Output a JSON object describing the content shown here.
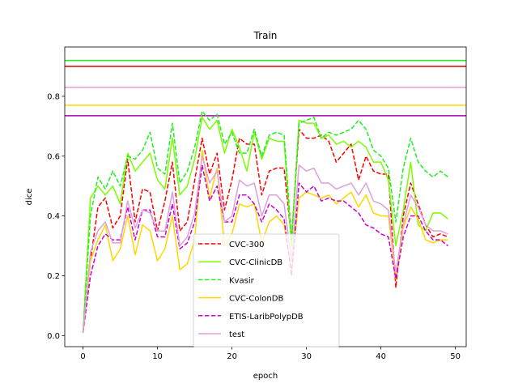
{
  "chart_data": {
    "type": "line",
    "title": "Train",
    "xlabel": "epoch",
    "ylabel": "dice",
    "xlim": [
      -2.45,
      51.45
    ],
    "ylim": [
      -0.037,
      0.965
    ],
    "xticks": [
      0,
      10,
      20,
      30,
      40,
      50
    ],
    "yticks": [
      0.0,
      0.2,
      0.4,
      0.6,
      0.8
    ],
    "xtick_labels": [
      "0",
      "10",
      "20",
      "30",
      "40",
      "50"
    ],
    "ytick_labels": [
      "0.0",
      "0.2",
      "0.4",
      "0.6",
      "0.8"
    ],
    "grid": false,
    "legend_position": "lower-center",
    "x": [
      0,
      1,
      2,
      3,
      4,
      5,
      6,
      7,
      8,
      9,
      10,
      11,
      12,
      13,
      14,
      15,
      16,
      17,
      18,
      19,
      20,
      21,
      22,
      23,
      24,
      25,
      26,
      27,
      28,
      29,
      30,
      31,
      32,
      33,
      34,
      35,
      36,
      37,
      38,
      39,
      40,
      41,
      42,
      43,
      44,
      45,
      46,
      47,
      48,
      49
    ],
    "series": [
      {
        "name": "CVC-300",
        "color": "#ff0000",
        "dash": "dashed",
        "values": [
          0.01,
          0.25,
          0.43,
          0.46,
          0.36,
          0.4,
          0.59,
          0.38,
          0.49,
          0.48,
          0.35,
          0.45,
          0.58,
          0.35,
          0.38,
          0.52,
          0.66,
          0.54,
          0.61,
          0.42,
          0.52,
          0.66,
          0.64,
          0.64,
          0.47,
          0.55,
          0.56,
          0.56,
          0.32,
          0.69,
          0.66,
          0.66,
          0.67,
          0.65,
          0.58,
          0.61,
          0.64,
          0.52,
          0.6,
          0.55,
          0.54,
          0.54,
          0.16,
          0.4,
          0.51,
          0.44,
          0.37,
          0.33,
          0.34,
          0.33
        ]
      },
      {
        "name": "CVC-ClinicDB",
        "color": "#7cfc00",
        "dash": "solid",
        "values": [
          0.01,
          0.46,
          0.5,
          0.47,
          0.5,
          0.44,
          0.61,
          0.55,
          0.58,
          0.61,
          0.52,
          0.49,
          0.66,
          0.47,
          0.5,
          0.59,
          0.73,
          0.69,
          0.72,
          0.61,
          0.69,
          0.63,
          0.55,
          0.68,
          0.59,
          0.66,
          0.65,
          0.65,
          0.3,
          0.72,
          0.71,
          0.71,
          0.66,
          0.67,
          0.64,
          0.65,
          0.63,
          0.65,
          0.63,
          0.58,
          0.58,
          0.52,
          0.3,
          0.42,
          0.58,
          0.37,
          0.35,
          0.41,
          0.41,
          0.39
        ]
      },
      {
        "name": "Kvasir",
        "color": "#22ee22",
        "dash": "dashed",
        "values": [
          0.01,
          0.4,
          0.53,
          0.49,
          0.55,
          0.5,
          0.6,
          0.59,
          0.62,
          0.68,
          0.56,
          0.54,
          0.71,
          0.51,
          0.55,
          0.63,
          0.75,
          0.72,
          0.74,
          0.64,
          0.68,
          0.61,
          0.61,
          0.69,
          0.6,
          0.67,
          0.68,
          0.67,
          0.32,
          0.71,
          0.72,
          0.73,
          0.66,
          0.68,
          0.67,
          0.68,
          0.69,
          0.72,
          0.69,
          0.62,
          0.6,
          0.56,
          0.38,
          0.56,
          0.66,
          0.58,
          0.55,
          0.53,
          0.55,
          0.53
        ]
      },
      {
        "name": "CVC-ColonDB",
        "color": "#ffd700",
        "dash": "solid",
        "values": [
          0.01,
          0.25,
          0.32,
          0.37,
          0.25,
          0.29,
          0.4,
          0.27,
          0.37,
          0.35,
          0.25,
          0.29,
          0.4,
          0.22,
          0.24,
          0.32,
          0.62,
          0.46,
          0.56,
          0.3,
          0.34,
          0.44,
          0.43,
          0.44,
          0.31,
          0.38,
          0.4,
          0.37,
          0.22,
          0.46,
          0.48,
          0.47,
          0.46,
          0.47,
          0.44,
          0.46,
          0.48,
          0.43,
          0.47,
          0.41,
          0.4,
          0.4,
          0.19,
          0.36,
          0.43,
          0.39,
          0.32,
          0.31,
          0.32,
          0.32
        ]
      },
      {
        "name": "ETIS-LaribPolypDB",
        "color": "#cc00cc",
        "dash": "dashed",
        "values": [
          0.01,
          0.2,
          0.3,
          0.34,
          0.32,
          0.32,
          0.43,
          0.32,
          0.42,
          0.42,
          0.33,
          0.33,
          0.44,
          0.29,
          0.31,
          0.38,
          0.57,
          0.45,
          0.5,
          0.38,
          0.38,
          0.47,
          0.47,
          0.44,
          0.38,
          0.44,
          0.42,
          0.39,
          0.2,
          0.51,
          0.48,
          0.5,
          0.45,
          0.46,
          0.45,
          0.45,
          0.43,
          0.41,
          0.37,
          0.36,
          0.34,
          0.33,
          0.19,
          0.33,
          0.4,
          0.4,
          0.35,
          0.32,
          0.32,
          0.3
        ]
      },
      {
        "name": "test",
        "color": "#dda0dd",
        "dash": "solid",
        "values": [
          0.01,
          0.28,
          0.35,
          0.38,
          0.31,
          0.31,
          0.45,
          0.36,
          0.42,
          0.41,
          0.35,
          0.35,
          0.48,
          0.3,
          0.33,
          0.41,
          0.6,
          0.51,
          0.55,
          0.38,
          0.4,
          0.52,
          0.5,
          0.51,
          0.4,
          0.47,
          0.47,
          0.44,
          0.25,
          0.57,
          0.55,
          0.56,
          0.51,
          0.51,
          0.49,
          0.5,
          0.51,
          0.47,
          0.51,
          0.45,
          0.44,
          0.42,
          0.21,
          0.37,
          0.47,
          0.43,
          0.37,
          0.35,
          0.35,
          0.34
        ]
      }
    ],
    "hlines": [
      {
        "y": 0.92,
        "color": "#22ee22"
      },
      {
        "y": 0.9,
        "color": "#dd0000"
      },
      {
        "y": 0.83,
        "color": "#dda0dd"
      },
      {
        "y": 0.77,
        "color": "#ffd700"
      },
      {
        "y": 0.735,
        "color": "#aa00aa"
      }
    ]
  }
}
